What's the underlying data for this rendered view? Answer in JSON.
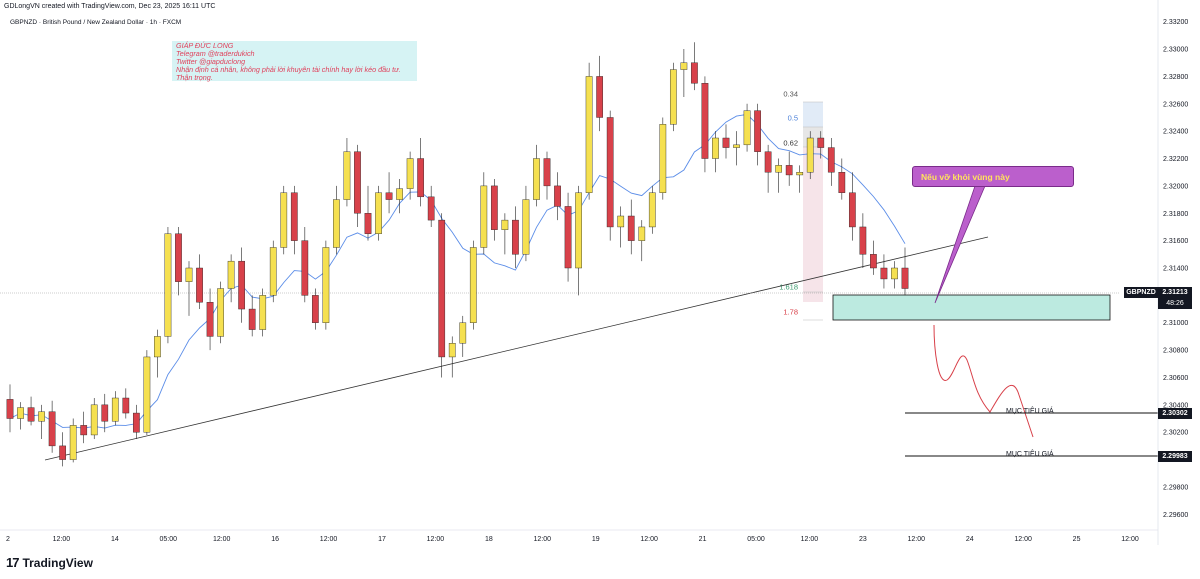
{
  "header": {
    "created_by": "GDLongVN created with TradingView.com, Dec 23, 2025 16:11 UTC",
    "symbol": "GBPNZD · British Pound / New Zealand Dollar · 1h · FXCM"
  },
  "note": {
    "lines": [
      "GIÁP ĐỨC LONG",
      "Telegram @traderdukich",
      "Twitter @giapduclong",
      "Nhận định cá nhân, không phải lời khuyên tài chính hay lời kéo đầu tư.",
      "Thận trọng."
    ]
  },
  "callout": {
    "text": "Nếu vỡ khỏi vùng này"
  },
  "fib": {
    "levels": [
      "0.34",
      "0.5",
      "0.62",
      "1.618",
      "1.78"
    ]
  },
  "targets": [
    {
      "label": "MỤC TIÊU GIÁ",
      "price": "2.30302"
    },
    {
      "label": "MỤC TIÊU GIÁ",
      "price": "2.29983"
    }
  ],
  "current": {
    "symbol": "GBPNZD",
    "price": "2.31213",
    "countdown": "48:26"
  },
  "brand": {
    "logo": "17",
    "name": "TradingView"
  },
  "colors": {
    "up": "#f5e050",
    "down": "#d8414a",
    "ma": "#5b8de8",
    "zone": "#a6e3d6",
    "callout": "#bb5fcc"
  },
  "chart_data": {
    "type": "candlestick",
    "yaxis_ticks": [
      "2.33200",
      "2.33000",
      "2.32800",
      "2.32600",
      "2.32400",
      "2.32200",
      "2.32000",
      "2.31800",
      "2.31600",
      "2.31400",
      "2.31200",
      "2.31000",
      "2.30800",
      "2.30600",
      "2.30400",
      "2.30200",
      "2.30000",
      "2.29800",
      "2.29600"
    ],
    "xaxis_ticks": [
      "2",
      "12:00",
      "14",
      "05:00",
      "12:00",
      "16",
      "12:00",
      "17",
      "12:00",
      "18",
      "12:00",
      "19",
      "12:00",
      "21",
      "05:00",
      "12:00",
      "23",
      "12:00",
      "24",
      "12:00",
      "25",
      "12:00"
    ],
    "ylim": [
      2.295,
      2.333
    ],
    "candles": [
      [
        2.3044,
        2.3055,
        2.302,
        2.303
      ],
      [
        2.303,
        2.3042,
        2.3022,
        2.3038
      ],
      [
        2.3038,
        2.3046,
        2.3025,
        2.3028
      ],
      [
        2.3028,
        2.304,
        2.3015,
        2.3035
      ],
      [
        2.3035,
        2.3043,
        2.3005,
        2.301
      ],
      [
        2.301,
        2.302,
        2.2995,
        2.3
      ],
      [
        2.3,
        2.303,
        2.2998,
        2.3025
      ],
      [
        2.3025,
        2.3035,
        2.3012,
        2.3018
      ],
      [
        2.3018,
        2.3045,
        2.3015,
        2.304
      ],
      [
        2.304,
        2.3048,
        2.302,
        2.3028
      ],
      [
        2.3028,
        2.305,
        2.3025,
        2.3045
      ],
      [
        2.3045,
        2.3052,
        2.303,
        2.3034
      ],
      [
        2.3034,
        2.304,
        2.3015,
        2.302
      ],
      [
        2.302,
        2.308,
        2.3018,
        2.3075
      ],
      [
        2.3075,
        2.3095,
        2.306,
        2.309
      ],
      [
        2.309,
        2.317,
        2.3085,
        2.3165
      ],
      [
        2.3165,
        2.317,
        2.312,
        2.313
      ],
      [
        2.313,
        2.3145,
        2.3105,
        2.314
      ],
      [
        2.314,
        2.315,
        2.311,
        2.3115
      ],
      [
        2.3115,
        2.3125,
        2.308,
        2.309
      ],
      [
        2.309,
        2.313,
        2.3085,
        2.3125
      ],
      [
        2.3125,
        2.315,
        2.3115,
        2.3145
      ],
      [
        2.3145,
        2.3155,
        2.31,
        2.311
      ],
      [
        2.311,
        2.312,
        2.309,
        2.3095
      ],
      [
        2.3095,
        2.3125,
        2.309,
        2.312
      ],
      [
        2.312,
        2.316,
        2.3115,
        2.3155
      ],
      [
        2.3155,
        2.32,
        2.315,
        2.3195
      ],
      [
        2.3195,
        2.32,
        2.315,
        2.316
      ],
      [
        2.316,
        2.317,
        2.3115,
        2.312
      ],
      [
        2.312,
        2.3125,
        2.3095,
        2.31
      ],
      [
        2.31,
        2.316,
        2.3095,
        2.3155
      ],
      [
        2.3155,
        2.32,
        2.315,
        2.319
      ],
      [
        2.319,
        2.3235,
        2.3185,
        2.3225
      ],
      [
        2.3225,
        2.323,
        2.317,
        2.318
      ],
      [
        2.318,
        2.32,
        2.316,
        2.3165
      ],
      [
        2.3165,
        2.32,
        2.316,
        2.3195
      ],
      [
        2.3195,
        2.321,
        2.318,
        2.319
      ],
      [
        2.319,
        2.3205,
        2.318,
        2.3198
      ],
      [
        2.3198,
        2.3225,
        2.319,
        2.322
      ],
      [
        2.322,
        2.3235,
        2.3185,
        2.3192
      ],
      [
        2.3192,
        2.32,
        2.317,
        2.3175
      ],
      [
        2.3175,
        2.318,
        2.306,
        2.3075
      ],
      [
        2.3075,
        2.309,
        2.306,
        2.3085
      ],
      [
        2.3085,
        2.3105,
        2.3075,
        2.31
      ],
      [
        2.31,
        2.316,
        2.3095,
        2.3155
      ],
      [
        2.3155,
        2.321,
        2.315,
        2.32
      ],
      [
        2.32,
        2.3205,
        2.316,
        2.3168
      ],
      [
        2.3168,
        2.318,
        2.315,
        2.3175
      ],
      [
        2.3175,
        2.3185,
        2.314,
        2.315
      ],
      [
        2.315,
        2.32,
        2.3145,
        2.319
      ],
      [
        2.319,
        2.323,
        2.3185,
        2.322
      ],
      [
        2.322,
        2.3225,
        2.319,
        2.32
      ],
      [
        2.32,
        2.321,
        2.3175,
        2.3185
      ],
      [
        2.3185,
        2.3195,
        2.313,
        2.314
      ],
      [
        2.314,
        2.32,
        2.312,
        2.3195
      ],
      [
        2.3195,
        2.329,
        2.319,
        2.328
      ],
      [
        2.328,
        2.3295,
        2.324,
        2.325
      ],
      [
        2.325,
        2.3255,
        2.316,
        2.317
      ],
      [
        2.317,
        2.3185,
        2.3155,
        2.3178
      ],
      [
        2.3178,
        2.319,
        2.315,
        2.316
      ],
      [
        2.316,
        2.3175,
        2.3145,
        2.317
      ],
      [
        2.317,
        2.32,
        2.3165,
        2.3195
      ],
      [
        2.3195,
        2.325,
        2.319,
        2.3245
      ],
      [
        2.3245,
        2.329,
        2.324,
        2.3285
      ],
      [
        2.3285,
        2.33,
        2.3265,
        2.329
      ],
      [
        2.329,
        2.3305,
        2.327,
        2.3275
      ],
      [
        2.3275,
        2.328,
        2.321,
        2.322
      ],
      [
        2.322,
        2.324,
        2.321,
        2.3235
      ],
      [
        2.3235,
        2.3245,
        2.322,
        2.3228
      ],
      [
        2.3228,
        2.324,
        2.3215,
        2.323
      ],
      [
        2.323,
        2.326,
        2.3225,
        2.3255
      ],
      [
        2.3255,
        2.326,
        2.3215,
        2.3225
      ],
      [
        2.3225,
        2.323,
        2.3195,
        2.321
      ],
      [
        2.321,
        2.322,
        2.3195,
        2.3215
      ],
      [
        2.3215,
        2.3225,
        2.32,
        2.3208
      ],
      [
        2.3208,
        2.3215,
        2.3195,
        2.321
      ],
      [
        2.321,
        2.324,
        2.3205,
        2.3235
      ],
      [
        2.3235,
        2.324,
        2.322,
        2.3228
      ],
      [
        2.3228,
        2.3235,
        2.32,
        2.321
      ],
      [
        2.321,
        2.322,
        2.319,
        2.3195
      ],
      [
        2.3195,
        2.321,
        2.316,
        2.317
      ],
      [
        2.317,
        2.318,
        2.314,
        2.315
      ],
      [
        2.315,
        2.316,
        2.3135,
        2.314
      ],
      [
        2.314,
        2.315,
        2.3125,
        2.3132
      ],
      [
        2.3132,
        2.3145,
        2.3125,
        2.314
      ],
      [
        2.314,
        2.3155,
        2.312,
        2.3125
      ]
    ],
    "annotations": [
      "Nếu vỡ khỏi vùng này",
      "MỤC TIÊU GIÁ",
      "MỤC TIÊU GIÁ"
    ]
  }
}
